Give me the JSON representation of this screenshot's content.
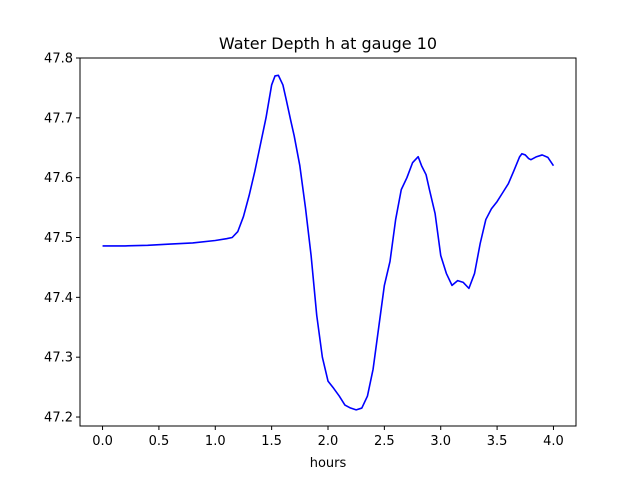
{
  "chart_data": {
    "type": "line",
    "title": "Water Depth h at gauge 10",
    "xlabel": "hours",
    "ylabel": "",
    "xlim": [
      -0.2,
      4.2
    ],
    "ylim": [
      47.185,
      47.8
    ],
    "x_ticks": [
      0.0,
      0.5,
      1.0,
      1.5,
      2.0,
      2.5,
      3.0,
      3.5,
      4.0
    ],
    "x_tick_labels": [
      "0.0",
      "0.5",
      "1.0",
      "1.5",
      "2.0",
      "2.5",
      "3.0",
      "3.5",
      "4.0"
    ],
    "y_ticks": [
      47.2,
      47.3,
      47.4,
      47.5,
      47.6,
      47.7,
      47.8
    ],
    "y_tick_labels": [
      "47.2",
      "47.3",
      "47.4",
      "47.5",
      "47.6",
      "47.7",
      "47.8"
    ],
    "grid": false,
    "legend": "none",
    "series": [
      {
        "color": "#0000ff",
        "x": [
          0.0,
          0.2,
          0.4,
          0.6,
          0.8,
          1.0,
          1.1,
          1.15,
          1.2,
          1.25,
          1.3,
          1.35,
          1.4,
          1.45,
          1.5,
          1.53,
          1.56,
          1.6,
          1.63,
          1.67,
          1.7,
          1.75,
          1.8,
          1.85,
          1.9,
          1.95,
          2.0,
          2.05,
          2.1,
          2.15,
          2.2,
          2.25,
          2.3,
          2.35,
          2.4,
          2.45,
          2.5,
          2.55,
          2.6,
          2.65,
          2.7,
          2.75,
          2.8,
          2.83,
          2.87,
          2.9,
          2.95,
          3.0,
          3.05,
          3.1,
          3.15,
          3.2,
          3.25,
          3.3,
          3.35,
          3.4,
          3.45,
          3.5,
          3.55,
          3.6,
          3.65,
          3.7,
          3.72,
          3.75,
          3.78,
          3.8,
          3.85,
          3.9,
          3.95,
          4.0
        ],
        "values": [
          47.486,
          47.486,
          47.487,
          47.489,
          47.491,
          47.495,
          47.498,
          47.5,
          47.51,
          47.535,
          47.57,
          47.61,
          47.655,
          47.7,
          47.755,
          47.77,
          47.771,
          47.755,
          47.73,
          47.695,
          47.67,
          47.62,
          47.55,
          47.47,
          47.37,
          47.3,
          47.26,
          47.248,
          47.235,
          47.22,
          47.215,
          47.212,
          47.215,
          47.235,
          47.28,
          47.35,
          47.42,
          47.46,
          47.53,
          47.58,
          47.6,
          47.625,
          47.635,
          47.62,
          47.605,
          47.58,
          47.54,
          47.47,
          47.44,
          47.42,
          47.428,
          47.425,
          47.415,
          47.44,
          47.49,
          47.53,
          47.548,
          47.56,
          47.575,
          47.59,
          47.612,
          47.635,
          47.64,
          47.638,
          47.632,
          47.63,
          47.635,
          47.638,
          47.634,
          47.62
        ]
      }
    ]
  }
}
